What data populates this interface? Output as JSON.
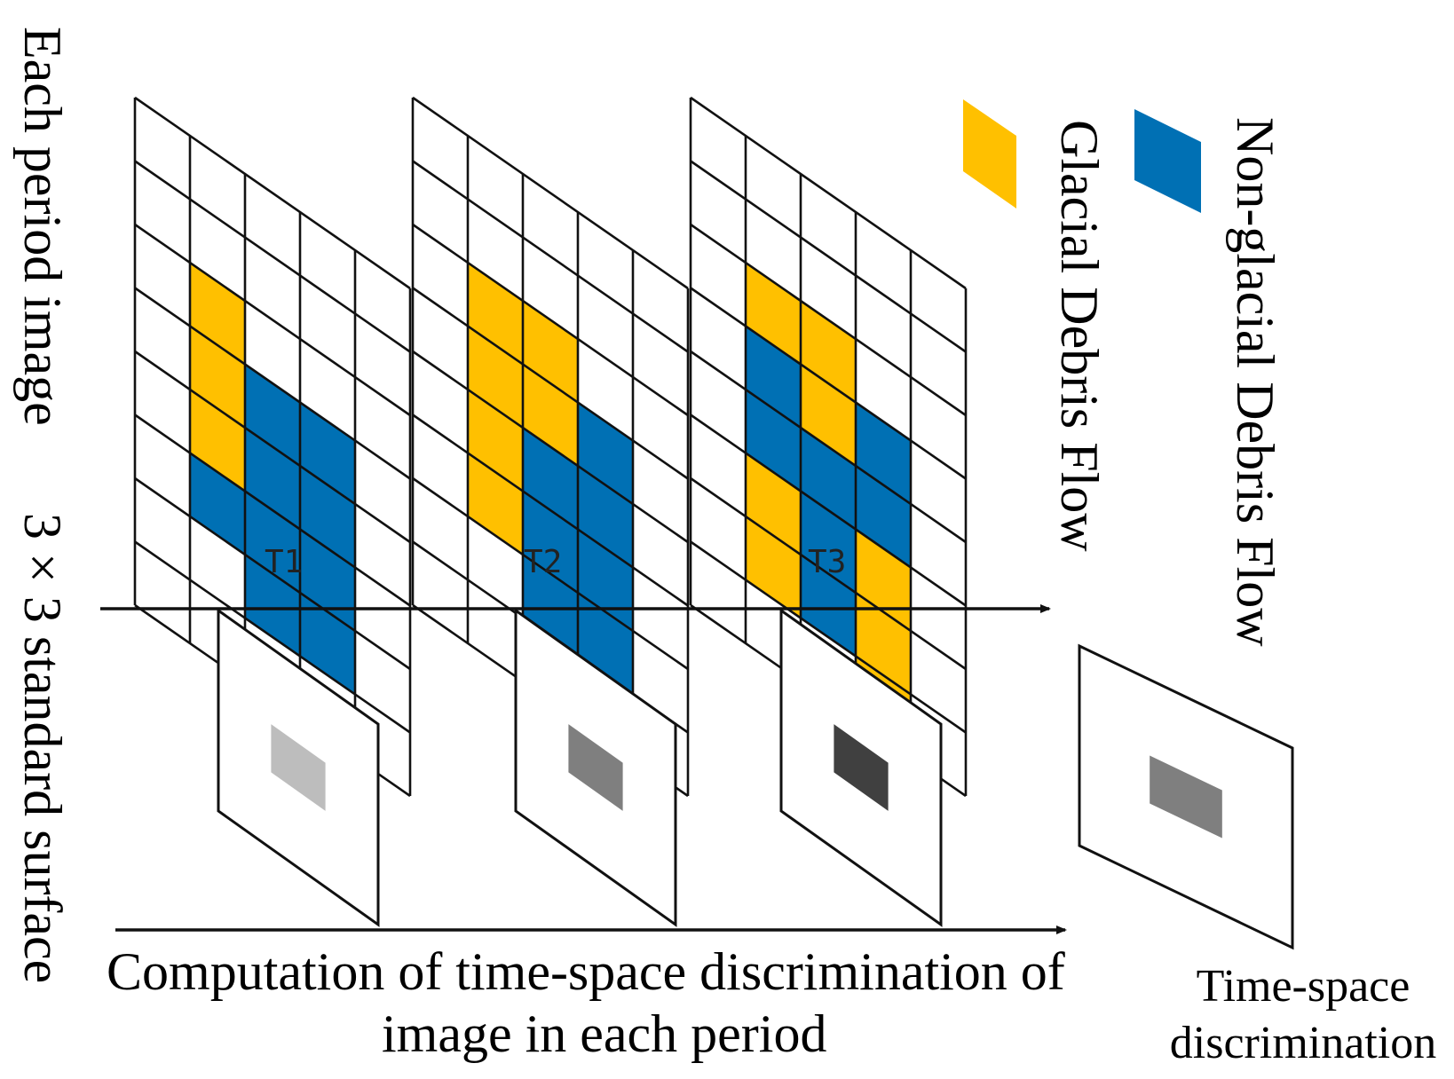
{
  "labels": {
    "left_top": "Each period image",
    "left_bottom": "3 × 3 standard surface",
    "bottom_caption_line1": "Computation of time-space discrimination of",
    "bottom_caption_line2": "image in each period",
    "result_line1": "Time-space",
    "result_line2": "discrimination"
  },
  "legend": [
    {
      "label": "Glacial Debris Flow",
      "color": "#FFC000"
    },
    {
      "label": "Non-glacial Debris Flow",
      "color": "#0070B4"
    }
  ],
  "colors": {
    "glacial": "#FFC000",
    "non_glacial": "#0070B4",
    "empty": "#FFFFFF"
  },
  "periods": [
    {
      "name": "T1",
      "grid": [
        [
          "",
          "",
          "",
          "",
          ""
        ],
        [
          "",
          "",
          "",
          "",
          ""
        ],
        [
          "",
          "G",
          "",
          "",
          ""
        ],
        [
          "",
          "G",
          "N",
          "N",
          ""
        ],
        [
          "",
          "G",
          "N",
          "N",
          ""
        ],
        [
          "",
          "N",
          "N",
          "N",
          ""
        ],
        [
          "",
          "",
          "N",
          "N",
          ""
        ],
        [
          "",
          "",
          "",
          "",
          ""
        ]
      ],
      "surface_gray": "#BDBDBD"
    },
    {
      "name": "T2",
      "grid": [
        [
          "",
          "",
          "",
          "",
          ""
        ],
        [
          "",
          "",
          "",
          "",
          ""
        ],
        [
          "",
          "G",
          "G",
          "",
          ""
        ],
        [
          "",
          "G",
          "G",
          "N",
          ""
        ],
        [
          "",
          "G",
          "N",
          "N",
          ""
        ],
        [
          "",
          "G",
          "N",
          "N",
          ""
        ],
        [
          "",
          "",
          "N",
          "N",
          ""
        ],
        [
          "",
          "",
          "",
          "",
          ""
        ]
      ],
      "surface_gray": "#7F7F7F"
    },
    {
      "name": "T3",
      "grid": [
        [
          "",
          "",
          "",
          "",
          ""
        ],
        [
          "",
          "",
          "",
          "",
          ""
        ],
        [
          "",
          "G",
          "G",
          "",
          ""
        ],
        [
          "",
          "N",
          "G",
          "N",
          ""
        ],
        [
          "",
          "N",
          "N",
          "N",
          ""
        ],
        [
          "",
          "G",
          "N",
          "G",
          ""
        ],
        [
          "",
          "G",
          "N",
          "G",
          ""
        ],
        [
          "",
          "",
          "",
          "G",
          ""
        ]
      ],
      "surface_gray": "#404040"
    }
  ],
  "result_surface_gray": "#7F7F7F"
}
